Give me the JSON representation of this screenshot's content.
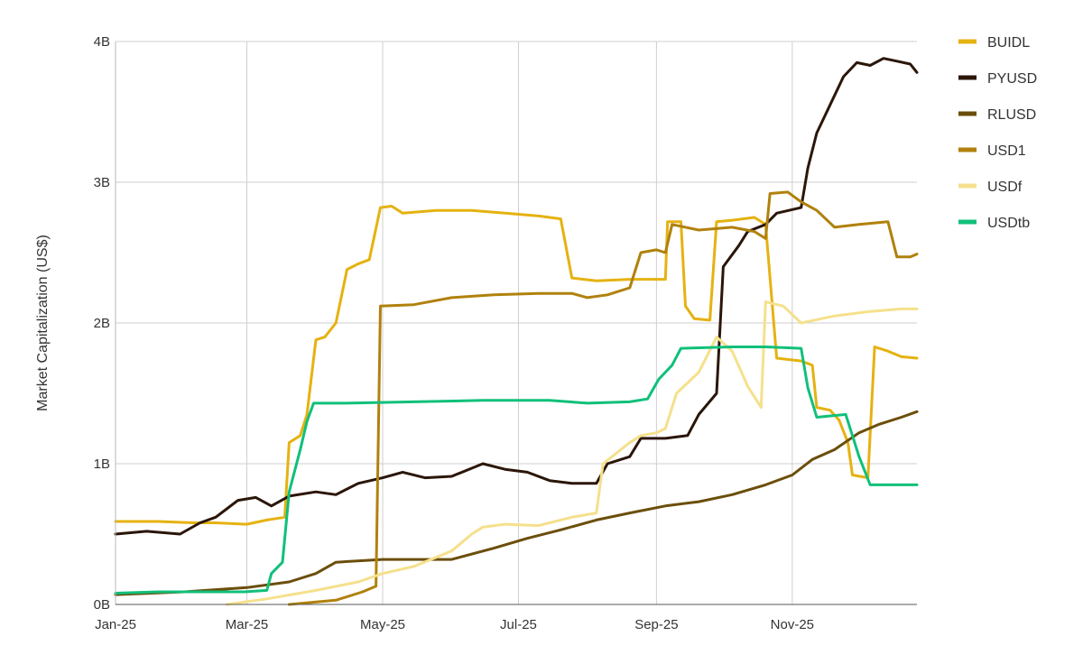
{
  "chart_data": {
    "type": "line",
    "title": "",
    "xlabel": "",
    "ylabel": "Market Capitalization (US$)",
    "x_ticks": [
      "Jan-25",
      "Mar-25",
      "May-25",
      "Jul-25",
      "Sep-25",
      "Nov-25"
    ],
    "y_ticks": [
      "0B",
      "1B",
      "2B",
      "3B",
      "4B"
    ],
    "xlim": [
      "2025-01-01",
      "2025-12-27"
    ],
    "ylim": [
      0,
      4
    ],
    "y_unit": "billions of US$",
    "grid": true,
    "legend_position": "right",
    "series": [
      {
        "name": "BUIDL",
        "color": "#E5B211",
        "points": [
          [
            "2025-01-01",
            0.59
          ],
          [
            "2025-01-20",
            0.59
          ],
          [
            "2025-02-05",
            0.58
          ],
          [
            "2025-02-15",
            0.58
          ],
          [
            "2025-03-01",
            0.57
          ],
          [
            "2025-03-10",
            0.6
          ],
          [
            "2025-03-18",
            0.62
          ],
          [
            "2025-03-20",
            1.15
          ],
          [
            "2025-03-25",
            1.2
          ],
          [
            "2025-03-28",
            1.35
          ],
          [
            "2025-04-01",
            1.88
          ],
          [
            "2025-04-05",
            1.9
          ],
          [
            "2025-04-10",
            2.0
          ],
          [
            "2025-04-15",
            2.38
          ],
          [
            "2025-04-20",
            2.42
          ],
          [
            "2025-04-25",
            2.45
          ],
          [
            "2025-04-30",
            2.82
          ],
          [
            "2025-05-05",
            2.83
          ],
          [
            "2025-05-10",
            2.78
          ],
          [
            "2025-05-25",
            2.8
          ],
          [
            "2025-06-10",
            2.8
          ],
          [
            "2025-06-25",
            2.78
          ],
          [
            "2025-07-10",
            2.76
          ],
          [
            "2025-07-20",
            2.74
          ],
          [
            "2025-07-25",
            2.32
          ],
          [
            "2025-08-05",
            2.3
          ],
          [
            "2025-08-20",
            2.31
          ],
          [
            "2025-09-05",
            2.31
          ],
          [
            "2025-09-06",
            2.72
          ],
          [
            "2025-09-12",
            2.72
          ],
          [
            "2025-09-14",
            2.12
          ],
          [
            "2025-09-18",
            2.03
          ],
          [
            "2025-09-25",
            2.02
          ],
          [
            "2025-09-28",
            2.72
          ],
          [
            "2025-10-05",
            2.73
          ],
          [
            "2025-10-15",
            2.75
          ],
          [
            "2025-10-20",
            2.7
          ],
          [
            "2025-10-25",
            1.75
          ],
          [
            "2025-11-05",
            1.73
          ],
          [
            "2025-11-10",
            1.7
          ],
          [
            "2025-11-12",
            1.4
          ],
          [
            "2025-11-18",
            1.38
          ],
          [
            "2025-11-22",
            1.31
          ],
          [
            "2025-11-26",
            1.15
          ],
          [
            "2025-11-28",
            0.92
          ],
          [
            "2025-12-05",
            0.9
          ],
          [
            "2025-12-08",
            1.83
          ],
          [
            "2025-12-14",
            1.8
          ],
          [
            "2025-12-20",
            1.76
          ],
          [
            "2025-12-27",
            1.75
          ]
        ]
      },
      {
        "name": "PYUSD",
        "color": "#2B1609",
        "points": [
          [
            "2025-01-01",
            0.5
          ],
          [
            "2025-01-15",
            0.52
          ],
          [
            "2025-01-30",
            0.5
          ],
          [
            "2025-02-08",
            0.58
          ],
          [
            "2025-02-15",
            0.62
          ],
          [
            "2025-02-25",
            0.74
          ],
          [
            "2025-03-05",
            0.76
          ],
          [
            "2025-03-12",
            0.7
          ],
          [
            "2025-03-20",
            0.77
          ],
          [
            "2025-04-01",
            0.8
          ],
          [
            "2025-04-10",
            0.78
          ],
          [
            "2025-04-20",
            0.86
          ],
          [
            "2025-05-01",
            0.9
          ],
          [
            "2025-05-10",
            0.94
          ],
          [
            "2025-05-20",
            0.9
          ],
          [
            "2025-06-01",
            0.91
          ],
          [
            "2025-06-15",
            1.0
          ],
          [
            "2025-06-25",
            0.96
          ],
          [
            "2025-07-05",
            0.94
          ],
          [
            "2025-07-15",
            0.88
          ],
          [
            "2025-07-25",
            0.86
          ],
          [
            "2025-08-05",
            0.86
          ],
          [
            "2025-08-10",
            1.0
          ],
          [
            "2025-08-20",
            1.05
          ],
          [
            "2025-08-25",
            1.18
          ],
          [
            "2025-09-05",
            1.18
          ],
          [
            "2025-09-15",
            1.2
          ],
          [
            "2025-09-20",
            1.35
          ],
          [
            "2025-09-28",
            1.5
          ],
          [
            "2025-10-01",
            2.4
          ],
          [
            "2025-10-08",
            2.55
          ],
          [
            "2025-10-12",
            2.65
          ],
          [
            "2025-10-20",
            2.7
          ],
          [
            "2025-10-25",
            2.78
          ],
          [
            "2025-11-05",
            2.82
          ],
          [
            "2025-11-08",
            3.1
          ],
          [
            "2025-11-12",
            3.35
          ],
          [
            "2025-11-18",
            3.55
          ],
          [
            "2025-11-24",
            3.75
          ],
          [
            "2025-11-30",
            3.85
          ],
          [
            "2025-12-06",
            3.83
          ],
          [
            "2025-12-12",
            3.88
          ],
          [
            "2025-12-18",
            3.86
          ],
          [
            "2025-12-24",
            3.84
          ],
          [
            "2025-12-27",
            3.78
          ]
        ]
      },
      {
        "name": "RLUSD",
        "color": "#6B4E0B",
        "points": [
          [
            "2025-01-01",
            0.07
          ],
          [
            "2025-02-01",
            0.09
          ],
          [
            "2025-03-01",
            0.12
          ],
          [
            "2025-03-20",
            0.16
          ],
          [
            "2025-04-01",
            0.22
          ],
          [
            "2025-04-10",
            0.3
          ],
          [
            "2025-05-01",
            0.32
          ],
          [
            "2025-06-01",
            0.32
          ],
          [
            "2025-06-20",
            0.4
          ],
          [
            "2025-07-05",
            0.47
          ],
          [
            "2025-07-20",
            0.53
          ],
          [
            "2025-08-05",
            0.6
          ],
          [
            "2025-08-20",
            0.65
          ],
          [
            "2025-09-05",
            0.7
          ],
          [
            "2025-09-20",
            0.73
          ],
          [
            "2025-10-05",
            0.78
          ],
          [
            "2025-10-20",
            0.85
          ],
          [
            "2025-11-01",
            0.92
          ],
          [
            "2025-11-10",
            1.03
          ],
          [
            "2025-11-20",
            1.1
          ],
          [
            "2025-12-01",
            1.22
          ],
          [
            "2025-12-10",
            1.28
          ],
          [
            "2025-12-20",
            1.33
          ],
          [
            "2025-12-27",
            1.37
          ]
        ]
      },
      {
        "name": "USD1",
        "color": "#B0810D",
        "points": [
          [
            "2025-03-20",
            0.0
          ],
          [
            "2025-04-10",
            0.03
          ],
          [
            "2025-04-22",
            0.09
          ],
          [
            "2025-04-28",
            0.13
          ],
          [
            "2025-04-30",
            2.12
          ],
          [
            "2025-05-15",
            2.13
          ],
          [
            "2025-06-01",
            2.18
          ],
          [
            "2025-06-20",
            2.2
          ],
          [
            "2025-07-10",
            2.21
          ],
          [
            "2025-07-25",
            2.21
          ],
          [
            "2025-08-01",
            2.18
          ],
          [
            "2025-08-10",
            2.2
          ],
          [
            "2025-08-20",
            2.25
          ],
          [
            "2025-08-25",
            2.5
          ],
          [
            "2025-09-01",
            2.52
          ],
          [
            "2025-09-05",
            2.5
          ],
          [
            "2025-09-08",
            2.7
          ],
          [
            "2025-09-20",
            2.66
          ],
          [
            "2025-10-05",
            2.68
          ],
          [
            "2025-10-15",
            2.65
          ],
          [
            "2025-10-20",
            2.6
          ],
          [
            "2025-10-22",
            2.92
          ],
          [
            "2025-10-30",
            2.93
          ],
          [
            "2025-11-05",
            2.86
          ],
          [
            "2025-11-12",
            2.8
          ],
          [
            "2025-11-20",
            2.68
          ],
          [
            "2025-12-01",
            2.7
          ],
          [
            "2025-12-14",
            2.72
          ],
          [
            "2025-12-18",
            2.47
          ],
          [
            "2025-12-24",
            2.47
          ],
          [
            "2025-12-27",
            2.49
          ]
        ]
      },
      {
        "name": "USDf",
        "color": "#F5E08C",
        "points": [
          [
            "2025-02-20",
            0.0
          ],
          [
            "2025-03-10",
            0.04
          ],
          [
            "2025-04-01",
            0.1
          ],
          [
            "2025-04-20",
            0.16
          ],
          [
            "2025-05-01",
            0.22
          ],
          [
            "2025-05-15",
            0.27
          ],
          [
            "2025-06-01",
            0.38
          ],
          [
            "2025-06-10",
            0.5
          ],
          [
            "2025-06-15",
            0.55
          ],
          [
            "2025-06-25",
            0.57
          ],
          [
            "2025-07-10",
            0.56
          ],
          [
            "2025-07-25",
            0.62
          ],
          [
            "2025-08-05",
            0.65
          ],
          [
            "2025-08-08",
            1.0
          ],
          [
            "2025-08-20",
            1.15
          ],
          [
            "2025-08-25",
            1.2
          ],
          [
            "2025-09-01",
            1.22
          ],
          [
            "2025-09-05",
            1.25
          ],
          [
            "2025-09-10",
            1.5
          ],
          [
            "2025-09-20",
            1.65
          ],
          [
            "2025-09-28",
            1.9
          ],
          [
            "2025-10-05",
            1.8
          ],
          [
            "2025-10-12",
            1.55
          ],
          [
            "2025-10-18",
            1.4
          ],
          [
            "2025-10-20",
            2.15
          ],
          [
            "2025-10-28",
            2.12
          ],
          [
            "2025-11-05",
            2.0
          ],
          [
            "2025-11-20",
            2.05
          ],
          [
            "2025-12-05",
            2.08
          ],
          [
            "2025-12-20",
            2.1
          ],
          [
            "2025-12-27",
            2.1
          ]
        ]
      },
      {
        "name": "USDtb",
        "color": "#10C07A",
        "points": [
          [
            "2025-01-01",
            0.08
          ],
          [
            "2025-01-20",
            0.09
          ],
          [
            "2025-02-10",
            0.09
          ],
          [
            "2025-02-28",
            0.09
          ],
          [
            "2025-03-10",
            0.1
          ],
          [
            "2025-03-12",
            0.22
          ],
          [
            "2025-03-17",
            0.3
          ],
          [
            "2025-03-20",
            0.8
          ],
          [
            "2025-03-25",
            1.1
          ],
          [
            "2025-03-28",
            1.3
          ],
          [
            "2025-03-31",
            1.43
          ],
          [
            "2025-04-15",
            1.43
          ],
          [
            "2025-05-15",
            1.44
          ],
          [
            "2025-06-15",
            1.45
          ],
          [
            "2025-07-15",
            1.45
          ],
          [
            "2025-08-01",
            1.43
          ],
          [
            "2025-08-20",
            1.44
          ],
          [
            "2025-08-28",
            1.46
          ],
          [
            "2025-09-02",
            1.6
          ],
          [
            "2025-09-08",
            1.7
          ],
          [
            "2025-09-12",
            1.82
          ],
          [
            "2025-10-05",
            1.83
          ],
          [
            "2025-10-20",
            1.83
          ],
          [
            "2025-11-05",
            1.82
          ],
          [
            "2025-11-08",
            1.54
          ],
          [
            "2025-11-12",
            1.33
          ],
          [
            "2025-11-25",
            1.35
          ],
          [
            "2025-12-01",
            1.05
          ],
          [
            "2025-12-06",
            0.85
          ],
          [
            "2025-12-27",
            0.85
          ]
        ]
      }
    ]
  }
}
